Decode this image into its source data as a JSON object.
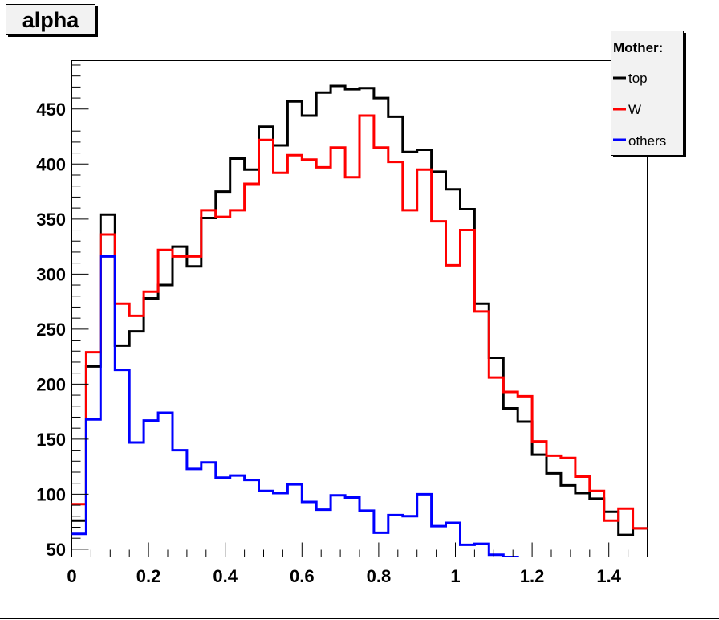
{
  "chart_data": {
    "type": "line",
    "style": "step-histogram",
    "title": "alpha",
    "xlabel": "",
    "ylabel": "",
    "xlim": [
      0,
      1.5
    ],
    "ylim": [
      43,
      494
    ],
    "grid": false,
    "bins": 40,
    "x_ticks": [
      "0",
      "0.2",
      "0.4",
      "0.6",
      "0.8",
      "1",
      "1.2",
      "1.4"
    ],
    "x_tick_values": [
      0,
      0.2,
      0.4,
      0.6,
      0.8,
      1.0,
      1.2,
      1.4
    ],
    "y_ticks": [
      "50",
      "100",
      "150",
      "200",
      "250",
      "300",
      "350",
      "400",
      "450"
    ],
    "y_tick_values": [
      50,
      100,
      150,
      200,
      250,
      300,
      350,
      400,
      450
    ],
    "legend": {
      "title": "Mother:",
      "placement": "top-right"
    },
    "series": [
      {
        "name": "top",
        "color": "#000000",
        "values": [
          76,
          216,
          354,
          235,
          248,
          278,
          290,
          325,
          307,
          351,
          375,
          405,
          395,
          434,
          417,
          457,
          444,
          465,
          471,
          468,
          469,
          460,
          443,
          411,
          413,
          393,
          377,
          359,
          273,
          224,
          178,
          166,
          136,
          119,
          108,
          101,
          96,
          84,
          63,
          69
        ]
      },
      {
        "name": "W",
        "color": "#ff0000",
        "values": [
          91,
          229,
          336,
          273,
          262,
          284,
          322,
          316,
          316,
          358,
          352,
          358,
          382,
          422,
          392,
          408,
          404,
          397,
          415,
          388,
          444,
          415,
          402,
          358,
          395,
          348,
          308,
          340,
          266,
          206,
          193,
          189,
          148,
          135,
          133,
          116,
          103,
          76,
          87,
          69
        ]
      },
      {
        "name": "others",
        "color": "#0000ff",
        "values": [
          64,
          168,
          316,
          213,
          147,
          167,
          174,
          140,
          123,
          129,
          115,
          117,
          113,
          103,
          101,
          109,
          93,
          86,
          99,
          97,
          85,
          65,
          81,
          80,
          100,
          71,
          74,
          54,
          55,
          45,
          43,
          40,
          40,
          40,
          40,
          40,
          40,
          40,
          40,
          40
        ]
      }
    ]
  }
}
